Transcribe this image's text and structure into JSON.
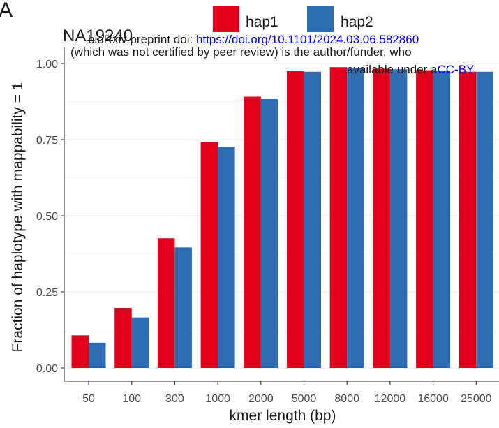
{
  "panel_label": "A",
  "preprint": {
    "line1_prefix": "bioRxiv preprint doi: ",
    "line1_link": "https://doi.org/10.1101/2024.03.06.582860",
    "line2": "(which was not certified by peer review) is the author/funder, who",
    "line3_prefix": "available under a",
    "line3_link": "CC-BY"
  },
  "colors": {
    "hap1": "#e0001b",
    "hap2": "#2f6db3",
    "grid": "#ebebeb",
    "axis": "#333333"
  },
  "chart_data": {
    "type": "bar",
    "title": "NA19240",
    "xlabel": "kmer length (bp)",
    "ylabel": "Fraction of haplotype with mappability = 1",
    "categories": [
      "50",
      "100",
      "300",
      "1000",
      "2000",
      "5000",
      "8000",
      "12000",
      "16000",
      "25000"
    ],
    "series": [
      {
        "name": "hap1",
        "values": [
          0.107,
          0.197,
          0.426,
          0.742,
          0.891,
          0.975,
          0.988,
          0.983,
          0.978,
          0.973
        ]
      },
      {
        "name": "hap2",
        "values": [
          0.083,
          0.166,
          0.396,
          0.727,
          0.883,
          0.973,
          0.985,
          0.981,
          0.977,
          0.973
        ]
      }
    ],
    "ylim": [
      0,
      1
    ],
    "yticks": [
      0,
      0.25,
      0.5,
      0.75,
      1
    ],
    "ytick_labels": [
      "0.00",
      "0.25",
      "0.50",
      "0.75",
      "1.00"
    ],
    "grid": true,
    "legend_position": "top"
  }
}
